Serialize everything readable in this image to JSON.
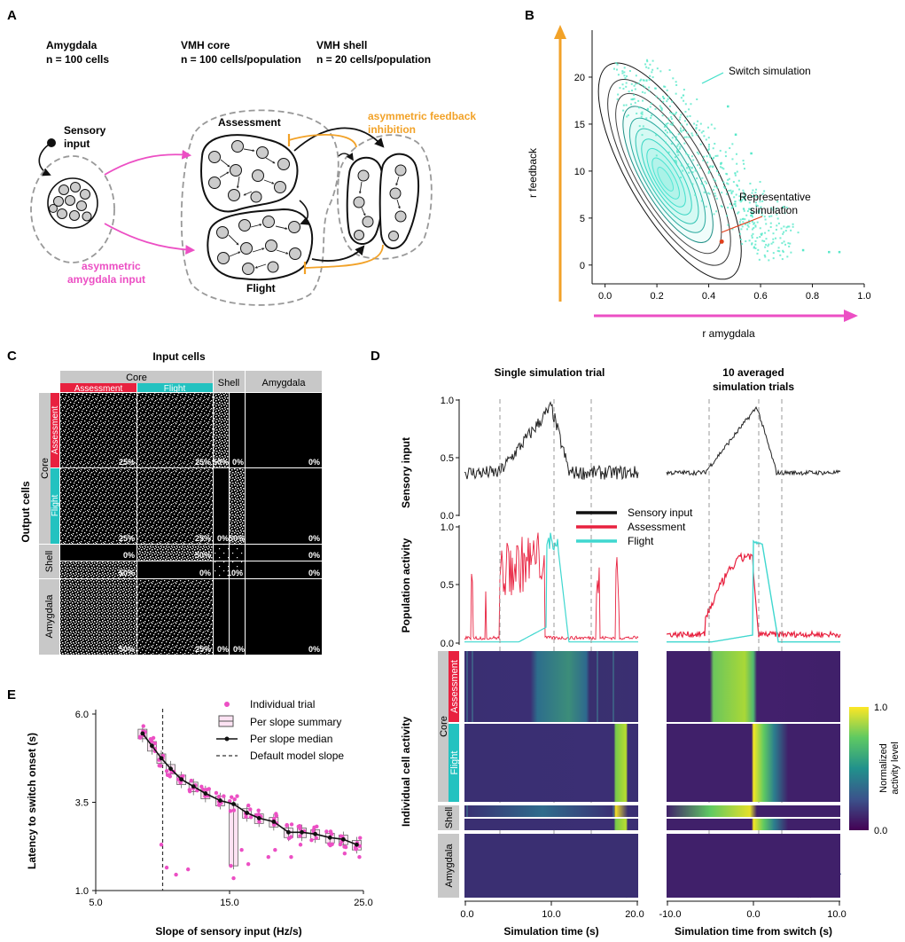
{
  "panels": {
    "a": "A",
    "b": "B",
    "c": "C",
    "d": "D",
    "e": "E"
  },
  "panel_a": {
    "amygdala_title": "Amygdala",
    "amygdala_n": "n = 100 cells",
    "core_title": "VMH core",
    "core_n": "n = 100 cells/population",
    "shell_title": "VMH shell",
    "shell_n": "n = 20 cells/population",
    "sensory_1": "Sensory",
    "sensory_2": "input",
    "assessment": "Assessment",
    "flight": "Flight",
    "feedback_1": "asymmetric feedback",
    "feedback_2": "inhibition",
    "amyg_input_1": "asymmetric",
    "amyg_input_2": "amygdala input",
    "colors": {
      "pink": "#ec4fc4",
      "orange": "#f2a228"
    }
  },
  "panel_b": {
    "chart_data": {
      "type": "scatter",
      "xlabel": "r amygdala",
      "ylabel": "r feedback",
      "xticks": [
        "0.0",
        "0.2",
        "0.4",
        "0.6",
        "0.8",
        "1.0"
      ],
      "yticks": [
        "0",
        "5",
        "10",
        "15",
        "20"
      ],
      "xlim": [
        -0.05,
        1.0
      ],
      "ylim": [
        -2,
        25
      ],
      "annotations": [
        "Switch simulation",
        "Representative",
        "simulation"
      ],
      "representative_point": [
        0.45,
        2.5
      ]
    }
  },
  "panel_c": {
    "title": "Input cells",
    "ylabel": "Output cells",
    "col_core": "Core",
    "col_assessment": "Assessment",
    "col_flight": "Flight",
    "col_shell": "Shell",
    "col_amygdala": "Amygdala",
    "row_core": "Core",
    "row_assessment": "Assessment",
    "row_flight": "Flight",
    "row_shell": "Shell",
    "row_amygdala": "Amygdala",
    "pct": {
      "r1": [
        "25%",
        "25%",
        "50%",
        "0%",
        "0%"
      ],
      "r2": [
        "25%",
        "25%",
        "0%",
        "50%",
        "0%"
      ],
      "r3": [
        "0%",
        "50%",
        "0%"
      ],
      "r4": [
        "50%",
        "0%",
        "10%",
        "0%"
      ],
      "r5": [
        "50%",
        "25%",
        "0%",
        "0%",
        "0%"
      ]
    }
  },
  "panel_d": {
    "title_single": "Single simulation trial",
    "title_avg_1": "10 averaged",
    "title_avg_2": "simulation trials",
    "ylabel_sensory": "Sensory input",
    "ylabel_pop": "Population activity",
    "ylabel_cells": "Individual cell activity",
    "yticks": [
      "1.0",
      "0.5",
      "0.0"
    ],
    "legend": [
      "Sensory input",
      "Assessment",
      "Flight"
    ],
    "row_core": "Core",
    "row_assessment": "Assessment",
    "row_flight": "Flight",
    "row_shell": "Shell",
    "row_amygdala": "Amygdala",
    "xticks_left": [
      "0.0",
      "10.0",
      "20.0"
    ],
    "xticks_right": [
      "-10.0",
      "0.0",
      "10.0"
    ],
    "xlabel_left": "Simulation time (s)",
    "xlabel_right": "Simulation time from switch (s)",
    "colorbar_title_1": "Normalized",
    "colorbar_title_2": "activity level",
    "colorbar_ticks": [
      "1.0",
      "0.0"
    ]
  },
  "panel_e": {
    "chart_data": {
      "type": "scatter",
      "xlabel": "Slope of sensory input (Hz/s)",
      "ylabel": "Latency to switch onset (s)",
      "xticks": [
        "5.0",
        "15.0",
        "25.0"
      ],
      "yticks": [
        "6.0",
        "3.5",
        "1.0"
      ],
      "xlim": [
        5,
        25
      ],
      "ylim": [
        1,
        6
      ],
      "default_slope": 10,
      "legend": [
        "Individual trial",
        "Per slope summary",
        "Per slope median",
        "Default model slope"
      ],
      "median": {
        "x": [
          8.5,
          9.2,
          9.9,
          10.6,
          11.4,
          12.3,
          13.2,
          14.3,
          15.3,
          16.3,
          17.2,
          18.3,
          19.4,
          20.4,
          21.4,
          22.5,
          23.5,
          24.5
        ],
        "y": [
          5.45,
          5.1,
          4.75,
          4.45,
          4.15,
          3.95,
          3.75,
          3.55,
          3.45,
          3.2,
          3.05,
          2.95,
          2.65,
          2.65,
          2.6,
          2.5,
          2.45,
          2.3
        ]
      },
      "outliers": {
        "x": [
          9.9,
          10.3,
          11.0,
          11.9,
          15.1,
          15.3,
          15.9,
          16.4,
          17.9,
          18.4,
          19.6,
          20.3,
          23.6,
          24.7
        ],
        "y": [
          2.3,
          1.65,
          1.45,
          1.6,
          1.7,
          1.35,
          2.15,
          1.75,
          1.95,
          2.15,
          1.95,
          2.3,
          2.05,
          1.95
        ]
      }
    }
  }
}
